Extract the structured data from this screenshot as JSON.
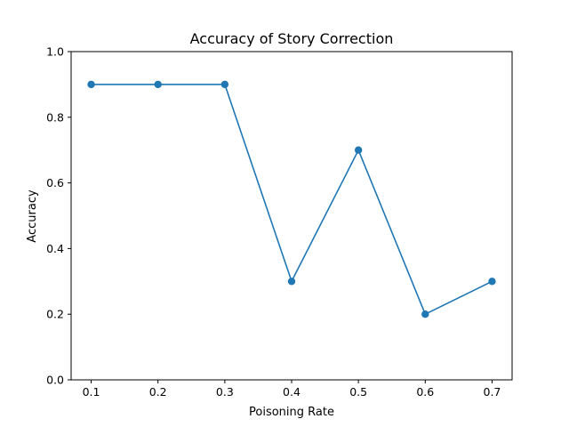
{
  "chart_data": {
    "type": "line",
    "title": "Accuracy of Story Correction",
    "xlabel": "Poisoning Rate",
    "ylabel": "Accuracy",
    "x": [
      0.1,
      0.2,
      0.3,
      0.4,
      0.5,
      0.6,
      0.7
    ],
    "series": [
      {
        "values": [
          0.9,
          0.9,
          0.9,
          0.3,
          0.7,
          0.2,
          0.3
        ]
      }
    ],
    "xlim": [
      0.07,
      0.73
    ],
    "ylim": [
      0.0,
      1.0
    ],
    "xticks": [
      "0.1",
      "0.2",
      "0.3",
      "0.4",
      "0.5",
      "0.6",
      "0.7"
    ],
    "yticks": [
      "0.0",
      "0.2",
      "0.4",
      "0.6",
      "0.8",
      "1.0"
    ],
    "grid": false,
    "marker": "circle",
    "colors": {
      "line": "#1f77b4",
      "marker": "#1f77b4"
    }
  }
}
